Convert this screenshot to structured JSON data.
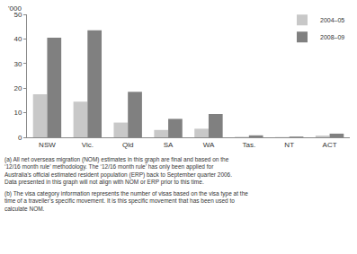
{
  "chart_data": {
    "type": "bar",
    "y_label": "'000",
    "categories": [
      "NSW",
      "Vic.",
      "Qld",
      "SA",
      "WA",
      "Tas.",
      "NT",
      "ACT"
    ],
    "series": [
      {
        "name": "2004–05",
        "color": "#c8c8c8",
        "values": [
          17.5,
          14.5,
          6,
          3,
          3.5,
          0.2,
          0.1,
          0.7
        ]
      },
      {
        "name": "2008–09",
        "color": "#808080",
        "values": [
          40.5,
          43.5,
          18.5,
          7.5,
          9.5,
          0.8,
          0.3,
          1.5
        ]
      }
    ],
    "ylim": [
      0,
      50
    ],
    "yticks": [
      0,
      10,
      20,
      30,
      40,
      50
    ],
    "grid": false,
    "legend": "upper right",
    "notes": [
      [
        "(a) All net overseas migration (NOM) estimates in this graph are final and based on the",
        "‘12/16 month rule’ methodology. The ‘12/16 month rule’ has only been applied for",
        "Australia’s official estimated resident population (ERP) back to September quarter 2006.",
        "Data presented in this graph will not align with NOM or ERP prior to this time."
      ],
      [
        "(b) The visa category information represents the number of visas based on the visa type at the",
        "time of a traveller’s specific movement. It is this specific movement that has been used to",
        "calculate NOM."
      ]
    ]
  }
}
